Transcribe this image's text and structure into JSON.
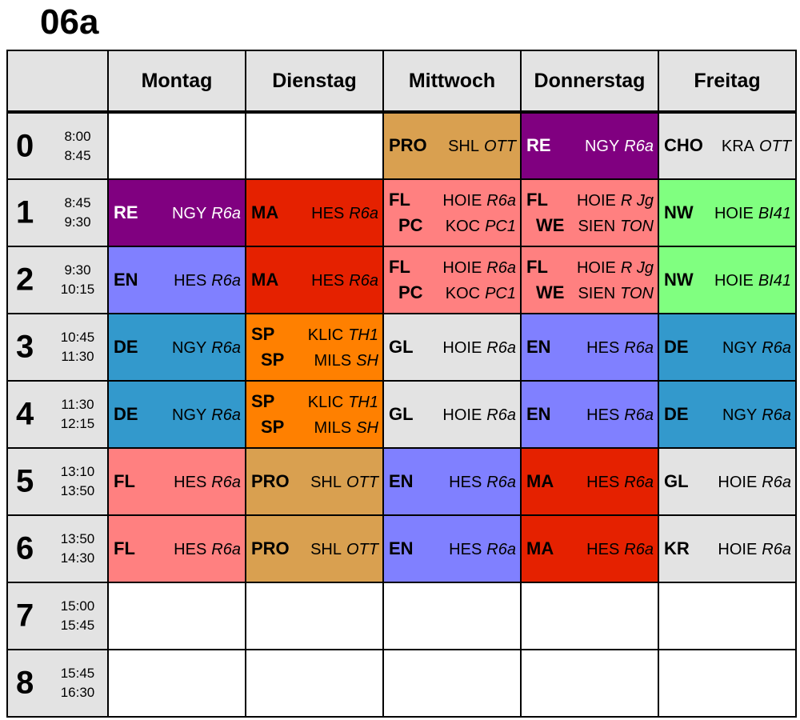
{
  "title": "06a",
  "days": [
    "Montag",
    "Dienstag",
    "Mittwoch",
    "Donnerstag",
    "Freitag"
  ],
  "colors": {
    "RE": "#800080",
    "MA": "#e52100",
    "EN": "#8080ff",
    "DE": "#3399cc",
    "SP": "#ff8000",
    "FL": "#ff8080",
    "PRO": "#d9a050",
    "GL": "#e3e3e3",
    "CHO": "#e3e3e3",
    "KR": "#e3e3e3",
    "NW": "#80ff80",
    "empty": "#ffffff"
  },
  "periods": [
    {
      "num": "0",
      "start": "8:00",
      "end": "8:45",
      "days": [
        [],
        [],
        [
          {
            "subject": "PRO",
            "teacher": "SHL",
            "room": "OTT"
          }
        ],
        [
          {
            "subject": "RE",
            "teacher": "NGY",
            "room": "R6a"
          }
        ],
        [
          {
            "subject": "CHO",
            "teacher": "KRA",
            "room": "OTT"
          }
        ]
      ]
    },
    {
      "num": "1",
      "start": "8:45",
      "end": "9:30",
      "days": [
        [
          {
            "subject": "RE",
            "teacher": "NGY",
            "room": "R6a"
          }
        ],
        [
          {
            "subject": "MA",
            "teacher": "HES",
            "room": "R6a"
          }
        ],
        [
          {
            "subject": "FL",
            "teacher": "HOIE",
            "room": "R6a"
          },
          {
            "subject": "PC",
            "teacher": "KOC",
            "room": "PC1"
          }
        ],
        [
          {
            "subject": "FL",
            "teacher": "HOIE",
            "room": "R Jg"
          },
          {
            "subject": "WE",
            "teacher": "SIEN",
            "room": "TON"
          }
        ],
        [
          {
            "subject": "NW",
            "teacher": "HOIE",
            "room": "BI41"
          }
        ]
      ]
    },
    {
      "num": "2",
      "start": "9:30",
      "end": "10:15",
      "days": [
        [
          {
            "subject": "EN",
            "teacher": "HES",
            "room": "R6a"
          }
        ],
        [
          {
            "subject": "MA",
            "teacher": "HES",
            "room": "R6a"
          }
        ],
        [
          {
            "subject": "FL",
            "teacher": "HOIE",
            "room": "R6a"
          },
          {
            "subject": "PC",
            "teacher": "KOC",
            "room": "PC1"
          }
        ],
        [
          {
            "subject": "FL",
            "teacher": "HOIE",
            "room": "R Jg"
          },
          {
            "subject": "WE",
            "teacher": "SIEN",
            "room": "TON"
          }
        ],
        [
          {
            "subject": "NW",
            "teacher": "HOIE",
            "room": "BI41"
          }
        ]
      ]
    },
    {
      "num": "3",
      "start": "10:45",
      "end": "11:30",
      "days": [
        [
          {
            "subject": "DE",
            "teacher": "NGY",
            "room": "R6a"
          }
        ],
        [
          {
            "subject": "SP",
            "teacher": "KLIC",
            "room": "TH1"
          },
          {
            "subject": "SP",
            "teacher": "MILS",
            "room": "SH"
          }
        ],
        [
          {
            "subject": "GL",
            "teacher": "HOIE",
            "room": "R6a"
          }
        ],
        [
          {
            "subject": "EN",
            "teacher": "HES",
            "room": "R6a"
          }
        ],
        [
          {
            "subject": "DE",
            "teacher": "NGY",
            "room": "R6a"
          }
        ]
      ]
    },
    {
      "num": "4",
      "start": "11:30",
      "end": "12:15",
      "days": [
        [
          {
            "subject": "DE",
            "teacher": "NGY",
            "room": "R6a"
          }
        ],
        [
          {
            "subject": "SP",
            "teacher": "KLIC",
            "room": "TH1"
          },
          {
            "subject": "SP",
            "teacher": "MILS",
            "room": "SH"
          }
        ],
        [
          {
            "subject": "GL",
            "teacher": "HOIE",
            "room": "R6a"
          }
        ],
        [
          {
            "subject": "EN",
            "teacher": "HES",
            "room": "R6a"
          }
        ],
        [
          {
            "subject": "DE",
            "teacher": "NGY",
            "room": "R6a"
          }
        ]
      ]
    },
    {
      "num": "5",
      "start": "13:10",
      "end": "13:50",
      "days": [
        [
          {
            "subject": "FL",
            "teacher": "HES",
            "room": "R6a"
          }
        ],
        [
          {
            "subject": "PRO",
            "teacher": "SHL",
            "room": "OTT"
          }
        ],
        [
          {
            "subject": "EN",
            "teacher": "HES",
            "room": "R6a"
          }
        ],
        [
          {
            "subject": "MA",
            "teacher": "HES",
            "room": "R6a"
          }
        ],
        [
          {
            "subject": "GL",
            "teacher": "HOIE",
            "room": "R6a"
          }
        ]
      ]
    },
    {
      "num": "6",
      "start": "13:50",
      "end": "14:30",
      "days": [
        [
          {
            "subject": "FL",
            "teacher": "HES",
            "room": "R6a"
          }
        ],
        [
          {
            "subject": "PRO",
            "teacher": "SHL",
            "room": "OTT"
          }
        ],
        [
          {
            "subject": "EN",
            "teacher": "HES",
            "room": "R6a"
          }
        ],
        [
          {
            "subject": "MA",
            "teacher": "HES",
            "room": "R6a"
          }
        ],
        [
          {
            "subject": "KR",
            "teacher": "HOIE",
            "room": "R6a"
          }
        ]
      ]
    },
    {
      "num": "7",
      "start": "15:00",
      "end": "15:45",
      "days": [
        [],
        [],
        [],
        [],
        []
      ]
    },
    {
      "num": "8",
      "start": "15:45",
      "end": "16:30",
      "days": [
        [],
        [],
        [],
        [],
        []
      ]
    }
  ]
}
